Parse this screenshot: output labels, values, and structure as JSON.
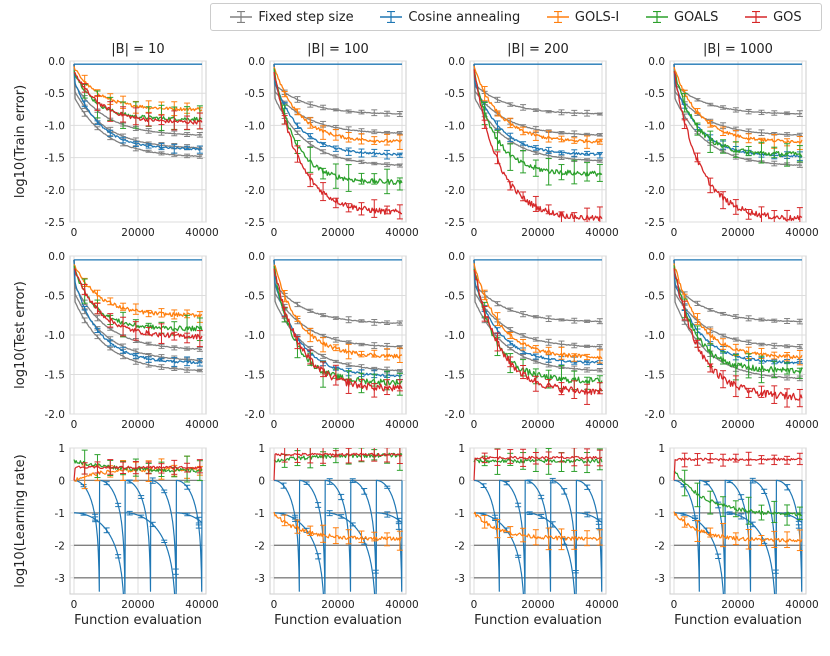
{
  "legend": {
    "items": [
      {
        "label": "Fixed step size",
        "color": "#808080"
      },
      {
        "label": "Cosine annealing",
        "color": "#1f77b4"
      },
      {
        "label": "GOLS-I",
        "color": "#ff7f0e"
      },
      {
        "label": "GOALS",
        "color": "#2ca02c"
      },
      {
        "label": "GOS",
        "color": "#d62728"
      }
    ]
  },
  "chart_data": {
    "type": "line",
    "columns": [
      "|B| = 10",
      "|B| = 100",
      "|B| = 200",
      "|B| = 1000"
    ],
    "xlabel": "Function evaluation",
    "x_range": [
      0,
      40000
    ],
    "x_ticks": [
      "0",
      "20000",
      "40000"
    ],
    "rows": [
      {
        "ylabel": "log10(Train error)",
        "ylim": [
          -2.5,
          0.0
        ],
        "y_ticks": [
          "0.0",
          "-0.5",
          "-1.0",
          "-1.5",
          "-2.0",
          "-2.5"
        ],
        "panels": [
          {
            "fixed_end": [
              -1.15,
              -1.35,
              -1.48
            ],
            "cosine_end": -1.37,
            "golsi_end": -0.75,
            "goals_end": -0.9,
            "gos_end": -0.95
          },
          {
            "fixed_end": [
              -0.82,
              -1.12,
              -1.62
            ],
            "cosine_end": -1.45,
            "golsi_end": -1.25,
            "goals_end": -1.88,
            "gos_end": -2.35
          },
          {
            "fixed_end": [
              -0.82,
              -1.15,
              -1.55
            ],
            "cosine_end": -1.45,
            "golsi_end": -1.25,
            "goals_end": -1.75,
            "gos_end": -2.45
          },
          {
            "fixed_end": [
              -0.82,
              -1.15,
              -1.62
            ],
            "cosine_end": -1.48,
            "golsi_end": -1.25,
            "goals_end": -1.45,
            "gos_end": -2.45
          }
        ]
      },
      {
        "ylabel": "log10(Test error)",
        "ylim": [
          -2.0,
          0.0
        ],
        "y_ticks": [
          "0.0",
          "-0.5",
          "-1.0",
          "-1.5",
          "-2.0"
        ],
        "panels": [
          {
            "fixed_end": [
              -1.18,
              -1.32,
              -1.45
            ],
            "cosine_end": -1.35,
            "golsi_end": -0.75,
            "goals_end": -0.92,
            "gos_end": -1.02
          },
          {
            "fixed_end": [
              -0.85,
              -1.15,
              -1.45
            ],
            "cosine_end": -1.52,
            "golsi_end": -1.27,
            "goals_end": -1.6,
            "gos_end": -1.68
          },
          {
            "fixed_end": [
              -0.83,
              -1.15,
              -1.45
            ],
            "cosine_end": -1.35,
            "golsi_end": -1.28,
            "goals_end": -1.58,
            "gos_end": -1.72
          },
          {
            "fixed_end": [
              -0.83,
              -1.15,
              -1.55
            ],
            "cosine_end": -1.35,
            "golsi_end": -1.28,
            "goals_end": -1.45,
            "gos_end": -1.78
          }
        ]
      },
      {
        "ylabel": "log10(Learning rate)",
        "ylim": [
          -3.5,
          1.0
        ],
        "y_ticks": [
          "1",
          "0",
          "-1",
          "-2",
          "-3"
        ],
        "fixed_levels": [
          0,
          -1,
          -2,
          -3
        ],
        "panels": [
          {
            "gos_level": 0.4,
            "goals_level": 0.3,
            "golsi_level": 0.35,
            "cosine": [
              0,
              -1
            ]
          },
          {
            "gos_level": 0.8,
            "goals_level": 0.78,
            "golsi_level": -1.8,
            "cosine": [
              0,
              -1
            ]
          },
          {
            "gos_level": 0.7,
            "goals_level": 0.6,
            "golsi_level": -1.8,
            "cosine": [
              0,
              -1
            ]
          },
          {
            "gos_level": 0.65,
            "goals_level": -1.05,
            "golsi_level": -1.85,
            "cosine": [
              0,
              -1
            ]
          }
        ]
      }
    ]
  }
}
